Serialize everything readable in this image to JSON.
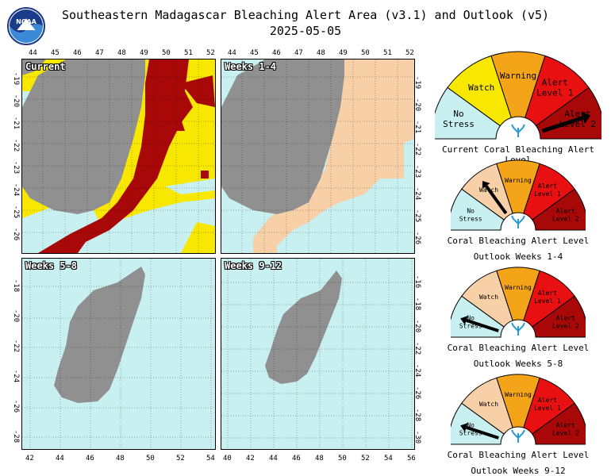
{
  "header": {
    "title": "Southeastern Madagascar Bleaching Alert Area (v3.1) and Outlook (v5)",
    "date": "2025-05-05",
    "logo_text": "NOAA"
  },
  "colors": {
    "no_stress": "#c8f0f0",
    "watch": "#f8e800",
    "warning": "#f4a418",
    "alert1": "#e81010",
    "alert2": "#a80808",
    "outlook_watch": "#f8d0a8",
    "land": "#909090",
    "ocean": "#bff0f0"
  },
  "panels": [
    {
      "label": "Current"
    },
    {
      "label": "Weeks 1-4"
    },
    {
      "label": "Weeks 5-8"
    },
    {
      "label": "Weeks 9-12"
    }
  ],
  "axes": {
    "top_x": [
      "44",
      "45",
      "46",
      "47",
      "48",
      "49",
      "50",
      "51",
      "52",
      "44",
      "45",
      "46",
      "47",
      "48",
      "49",
      "50",
      "51",
      "52"
    ],
    "left_y_top": [
      "-19",
      "-20",
      "-21",
      "-22",
      "-23",
      "-24",
      "-25",
      "-26"
    ],
    "right_y_top": [
      "-19",
      "-20",
      "-21",
      "-22",
      "-23",
      "-24",
      "-25",
      "-26"
    ],
    "left_y_bottom": [
      "-18",
      "-20",
      "-22",
      "-24",
      "-26",
      "-28"
    ],
    "right_y_bottom": [
      "-16",
      "-18",
      "-20",
      "-22",
      "-24",
      "-26",
      "-28",
      "-30"
    ],
    "bottom_x_left": [
      "42",
      "44",
      "46",
      "48",
      "50",
      "52",
      "54"
    ],
    "bottom_x_right": [
      "40",
      "42",
      "44",
      "46",
      "48",
      "50",
      "52",
      "54",
      "56"
    ]
  },
  "gauge_labels": {
    "no_stress": "No Stress",
    "watch": "Watch",
    "warning": "Warning",
    "alert1": "Alert Level 1",
    "alert2": "Alert Level 2"
  },
  "gauges": [
    {
      "caption": "Current Coral Bleaching Alert Level",
      "subcaption": "",
      "level": "Alert Level 2"
    },
    {
      "caption": "Coral Bleaching Alert Level",
      "subcaption": "Outlook Weeks 1-4",
      "level": "Watch"
    },
    {
      "caption": "Coral Bleaching Alert Level",
      "subcaption": "Outlook Weeks 5-8",
      "level": "No Stress"
    },
    {
      "caption": "Coral Bleaching Alert Level",
      "subcaption": "Outlook Weeks 9-12",
      "level": "No Stress"
    }
  ]
}
